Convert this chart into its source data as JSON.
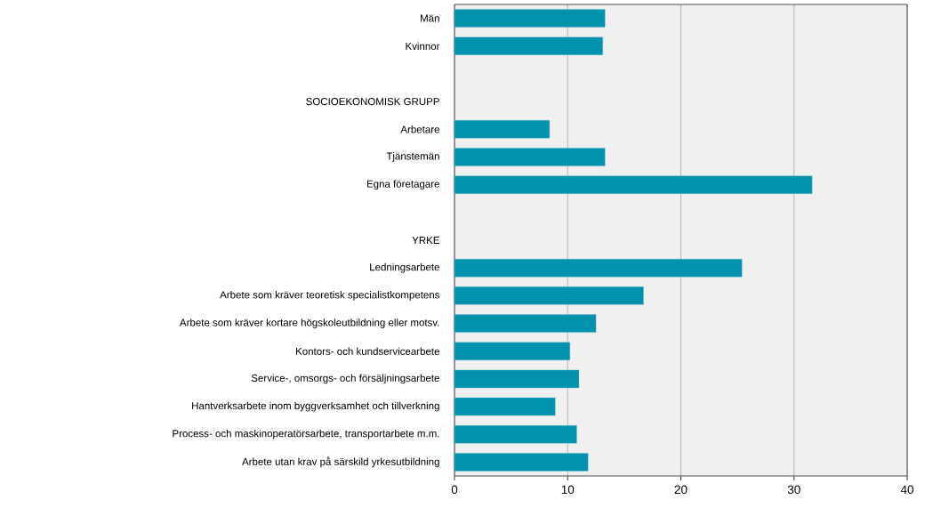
{
  "chart_data": {
    "type": "bar",
    "orientation": "horizontal",
    "color": "#0392ae",
    "categories": [
      "Män",
      "Kvinnor",
      null,
      "SOCIOEKONOMISK GRUPP",
      "Arbetare",
      "Tjänstemän",
      "Egna företagare",
      null,
      "YRKE",
      "Ledningsarbete",
      "Arbete som kräver teoretisk specialistkompetens",
      "Arbete som kräver kortare högskoleutbildning eller motsv.",
      "Kontors- och kundservicearbete",
      "Service-, omsorgs- och försäljningsarbete",
      "Hantverksarbete inom byggverksamhet och tillverkning",
      "Process- och maskinoperatörsarbete, transportarbete m.m.",
      "Arbete utan krav på särskild yrkesutbildning"
    ],
    "values": [
      13.3,
      13.1,
      null,
      null,
      8.4,
      13.3,
      31.6,
      null,
      null,
      25.4,
      16.7,
      12.5,
      10.2,
      11.0,
      8.9,
      10.8,
      11.8
    ],
    "xlim": [
      0,
      40
    ],
    "xticks": [
      0,
      10,
      20,
      30,
      40
    ],
    "grid": "x"
  }
}
